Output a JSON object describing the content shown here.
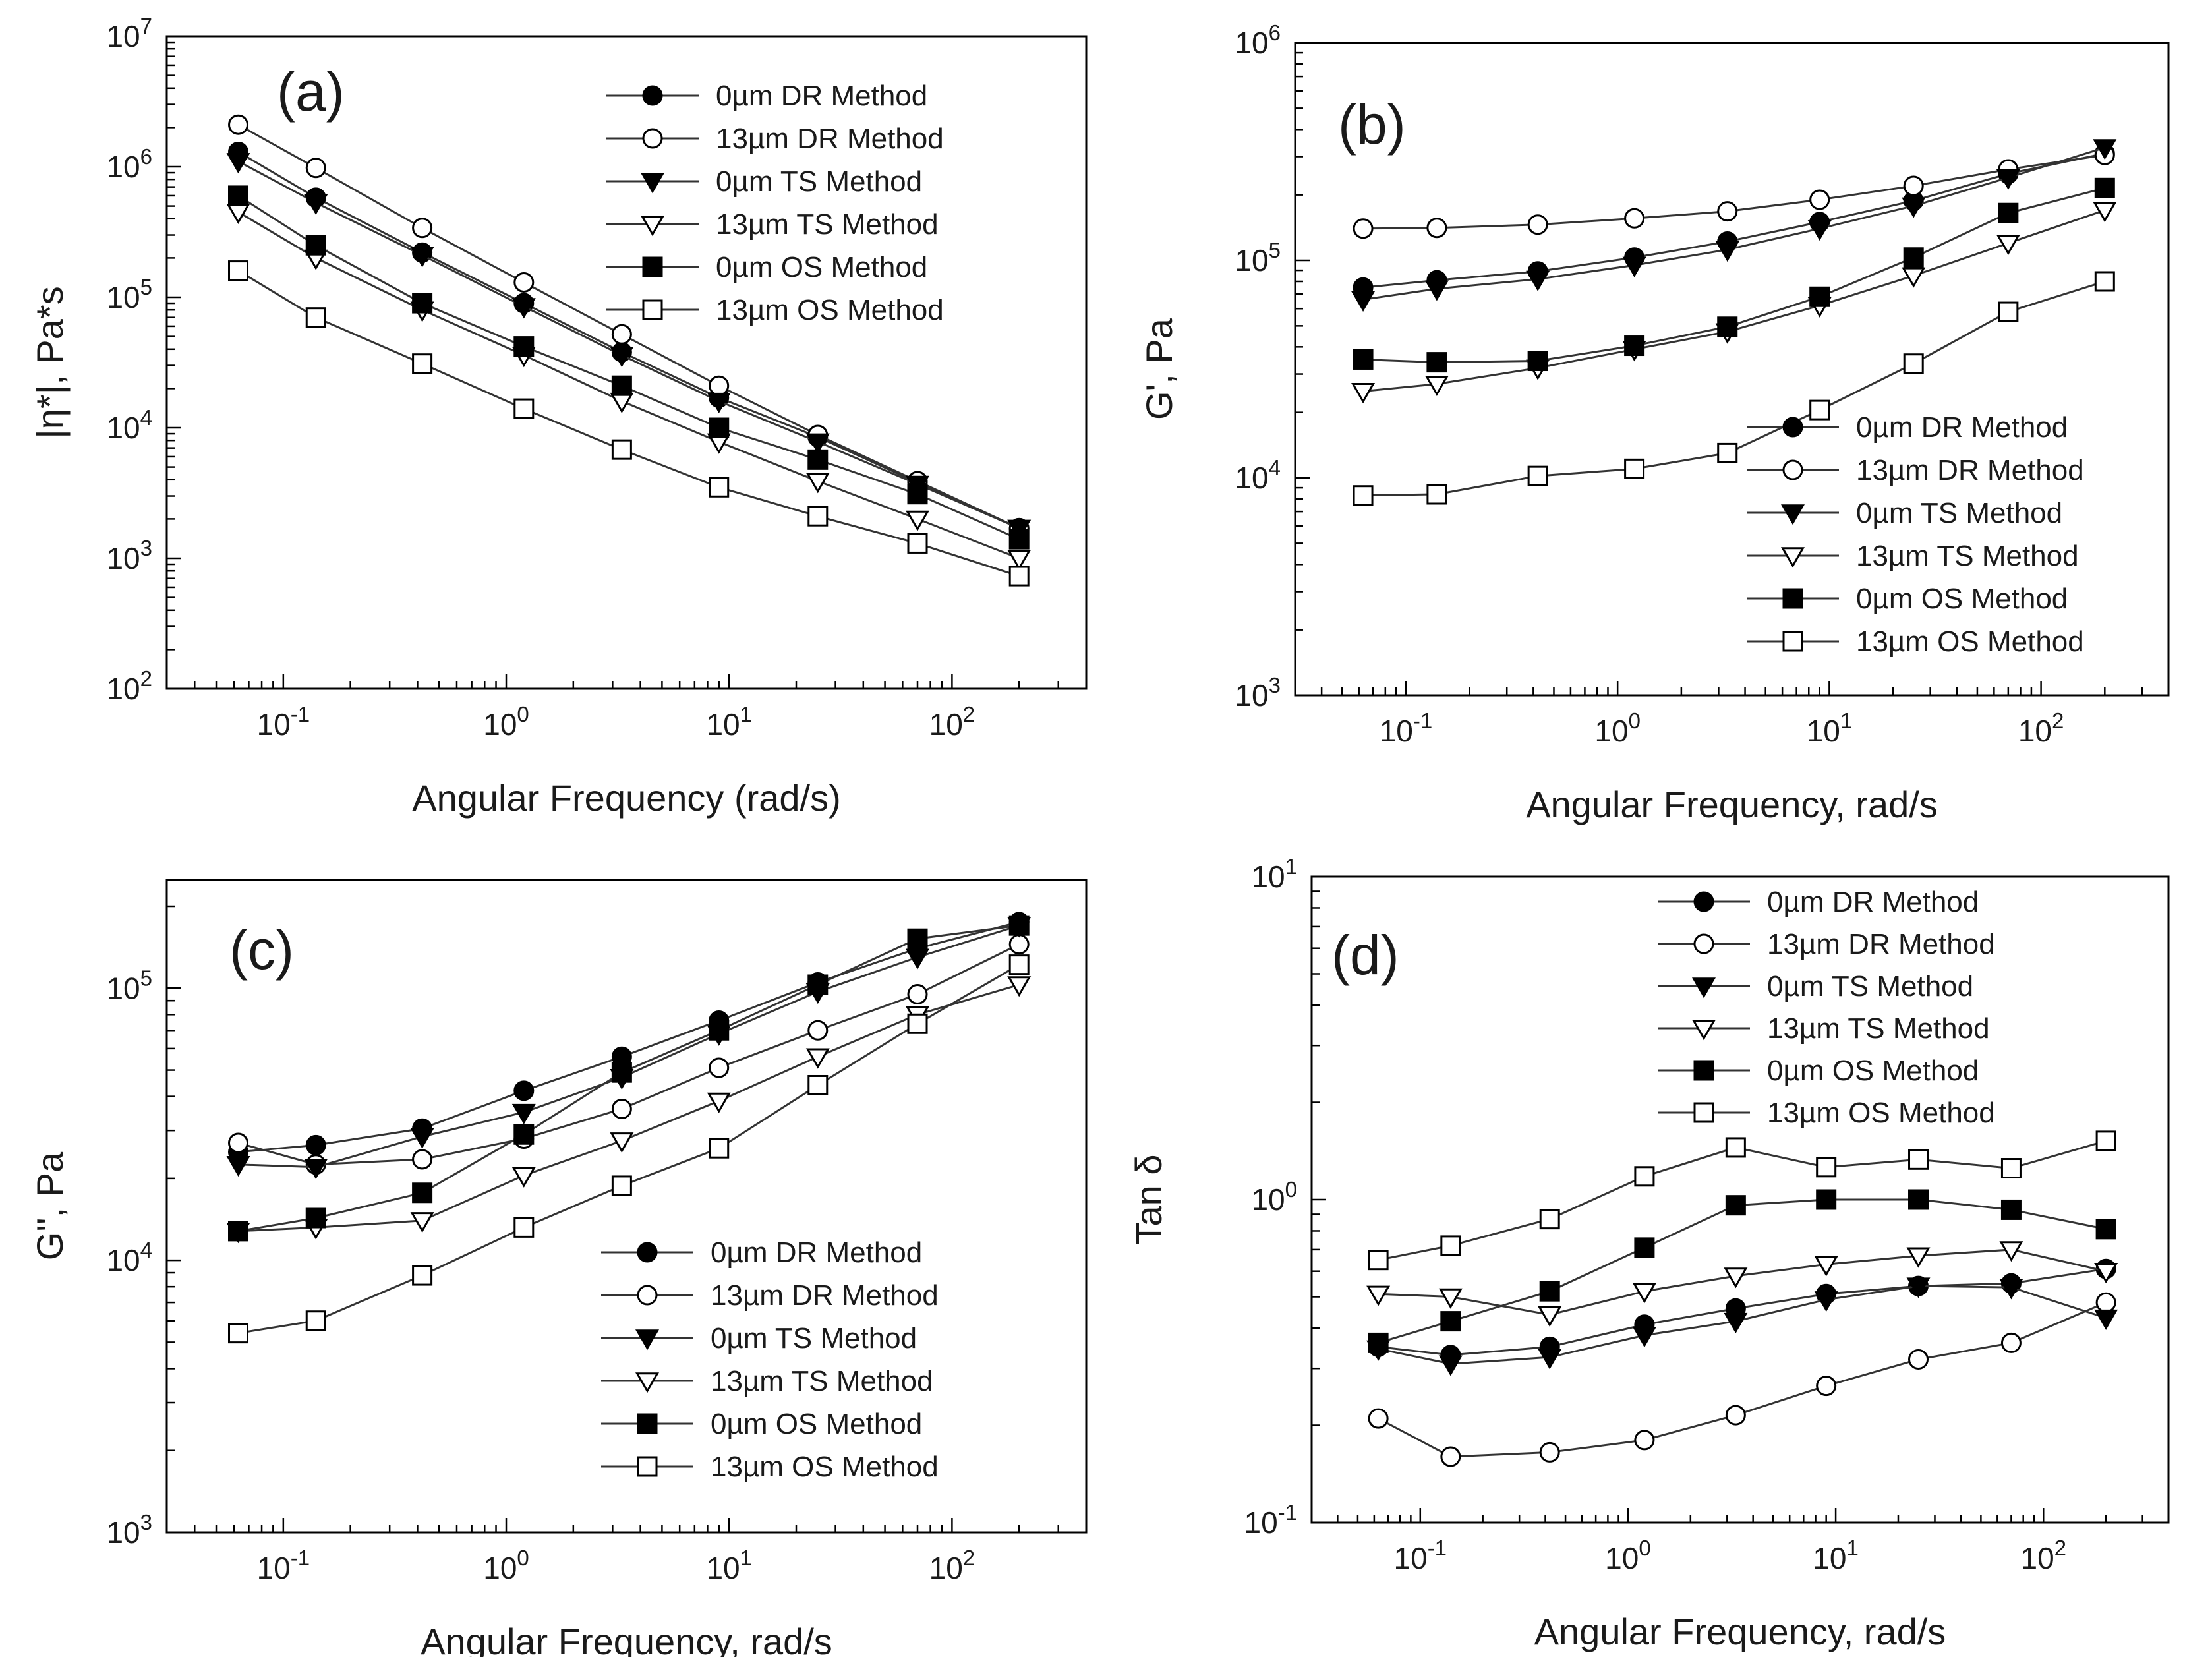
{
  "figure": {
    "legend_entries": [
      {
        "name": "0µm DR Method",
        "marker": "circle",
        "fill": "filled"
      },
      {
        "name": "13µm DR Method",
        "marker": "circle",
        "fill": "open"
      },
      {
        "name": "0µm TS Method",
        "marker": "triangle-down",
        "fill": "filled"
      },
      {
        "name": "13µm TS Method",
        "marker": "triangle-down",
        "fill": "open"
      },
      {
        "name": "0µm OS Method",
        "marker": "square",
        "fill": "filled"
      },
      {
        "name": "13µm OS Method",
        "marker": "square",
        "fill": "open"
      }
    ],
    "colors": {
      "marker": "#000000",
      "line": "#333333",
      "background": "#ffffff"
    }
  },
  "chart_data": [
    {
      "panel": "(a)",
      "type": "line",
      "xlabel": "Angular Frequency (rad/s)",
      "ylabel": "|η*|, Pa*s",
      "xscale": "log",
      "yscale": "log",
      "xlim": [
        0.03,
        400
      ],
      "ylim": [
        100,
        10000000
      ],
      "x_ticks": [
        "10-1",
        "100",
        "101",
        "102"
      ],
      "y_ticks": [
        "102",
        "103",
        "104",
        "105",
        "106",
        "107"
      ],
      "legend_position": "top-right",
      "x": [
        0.0628,
        0.14,
        0.42,
        1.2,
        3.3,
        9.0,
        25.0,
        70.0,
        200.0
      ],
      "series": [
        {
          "name": "0µm DR Method",
          "values": [
            1300000,
            580000,
            220000,
            90000,
            38000,
            17000,
            8500,
            3800,
            1700
          ]
        },
        {
          "name": "13µm DR Method",
          "values": [
            2100000,
            980000,
            340000,
            130000,
            52000,
            21000,
            8800,
            3900,
            1700
          ]
        },
        {
          "name": "0µm TS Method",
          "values": [
            1100000,
            530000,
            210000,
            85000,
            36000,
            16000,
            7800,
            3700,
            1700
          ]
        },
        {
          "name": "13µm TS Method",
          "values": [
            450000,
            200000,
            80000,
            36000,
            16000,
            7800,
            3900,
            2000,
            1000
          ]
        },
        {
          "name": "0µm OS Method",
          "values": [
            600000,
            250000,
            90000,
            42000,
            21000,
            10000,
            5700,
            3100,
            1400
          ]
        },
        {
          "name": "13µm OS Method",
          "values": [
            160000,
            70000,
            31000,
            14000,
            6800,
            3500,
            2100,
            1300,
            730
          ]
        }
      ]
    },
    {
      "panel": "(b)",
      "type": "line",
      "xlabel": "Angular Frequency, rad/s",
      "ylabel": "G', Pa",
      "xscale": "log",
      "yscale": "log",
      "xlim": [
        0.03,
        400
      ],
      "ylim": [
        1000,
        1000000
      ],
      "x_ticks": [
        "10-1",
        "100",
        "101",
        "102"
      ],
      "y_ticks": [
        "103",
        "104",
        "105",
        "106"
      ],
      "legend_position": "bottom-right",
      "x": [
        0.0628,
        0.14,
        0.42,
        1.2,
        3.3,
        9.0,
        25.0,
        70.0,
        200.0
      ],
      "series": [
        {
          "name": "0µm DR Method",
          "values": [
            75000,
            81000,
            89000,
            103000,
            122000,
            150000,
            188000,
            250000,
            310000
          ]
        },
        {
          "name": "13µm DR Method",
          "values": [
            140000,
            141000,
            146000,
            156000,
            168000,
            190000,
            220000,
            262000,
            305000
          ]
        },
        {
          "name": "0µm TS Method",
          "values": [
            66000,
            74000,
            82000,
            95000,
            112000,
            140000,
            178000,
            240000,
            330000
          ]
        },
        {
          "name": "13µm TS Method",
          "values": [
            25000,
            27000,
            32000,
            39000,
            47000,
            62000,
            85000,
            120000,
            170000
          ]
        },
        {
          "name": "0µm OS Method",
          "values": [
            35000,
            34000,
            34500,
            40500,
            49500,
            68000,
            103000,
            165000,
            215000
          ]
        },
        {
          "name": "13µm OS Method",
          "values": [
            8300,
            8400,
            10200,
            11000,
            13000,
            20500,
            33500,
            58000,
            80000
          ]
        }
      ]
    },
    {
      "panel": "(c)",
      "type": "line",
      "xlabel": "Angular Frequency, rad/s",
      "ylabel": "G'', Pa",
      "xscale": "log",
      "yscale": "log",
      "xlim": [
        0.03,
        400
      ],
      "ylim": [
        1000,
        250000
      ],
      "x_ticks": [
        "10-1",
        "100",
        "101",
        "102"
      ],
      "y_ticks": [
        "103",
        "104",
        "105"
      ],
      "legend_position": "bottom-right",
      "x": [
        0.0628,
        0.14,
        0.42,
        1.2,
        3.3,
        9.0,
        25.0,
        70.0,
        200.0
      ],
      "series": [
        {
          "name": "0µm DR Method",
          "values": [
            25000,
            26500,
            30500,
            42000,
            56000,
            76000,
            105000,
            140000,
            175000
          ]
        },
        {
          "name": "13µm DR Method",
          "values": [
            27000,
            22500,
            23500,
            28000,
            36000,
            51000,
            70000,
            95000,
            145000
          ]
        },
        {
          "name": "0µm TS Method",
          "values": [
            22500,
            22000,
            28500,
            35000,
            47000,
            68000,
            97000,
            130000,
            170000
          ]
        },
        {
          "name": "13µm TS Method",
          "values": [
            12800,
            13200,
            14000,
            20500,
            27500,
            38500,
            56000,
            80000,
            103000
          ]
        },
        {
          "name": "0µm OS Method",
          "values": [
            12800,
            14300,
            17700,
            29000,
            49000,
            70000,
            103000,
            152000,
            170000
          ]
        },
        {
          "name": "13µm OS Method",
          "values": [
            5400,
            6000,
            8800,
            13200,
            18800,
            25800,
            44000,
            74000,
            122000
          ]
        }
      ]
    },
    {
      "panel": "(d)",
      "type": "line",
      "xlabel": "Angular Frequency, rad/s",
      "ylabel": "Tan δ",
      "xscale": "log",
      "yscale": "log",
      "xlim": [
        0.03,
        400
      ],
      "ylim": [
        0.1,
        10
      ],
      "x_ticks": [
        "10-1",
        "100",
        "101",
        "102"
      ],
      "y_ticks": [
        "10-1",
        "100",
        "101"
      ],
      "legend_position": "top-right",
      "x": [
        0.0628,
        0.14,
        0.42,
        1.2,
        3.3,
        9.0,
        25.0,
        70.0,
        200.0
      ],
      "series": [
        {
          "name": "0µm DR Method",
          "values": [
            0.35,
            0.33,
            0.35,
            0.41,
            0.46,
            0.51,
            0.54,
            0.55,
            0.61
          ]
        },
        {
          "name": "13µm DR Method",
          "values": [
            0.21,
            0.16,
            0.165,
            0.18,
            0.215,
            0.265,
            0.32,
            0.36,
            0.48
          ]
        },
        {
          "name": "0µm TS Method",
          "values": [
            0.345,
            0.31,
            0.325,
            0.38,
            0.42,
            0.49,
            0.54,
            0.535,
            0.43
          ]
        },
        {
          "name": "13µm TS Method",
          "values": [
            0.51,
            0.5,
            0.44,
            0.52,
            0.58,
            0.63,
            0.67,
            0.7,
            0.6
          ]
        },
        {
          "name": "0µm OS Method",
          "values": [
            0.36,
            0.42,
            0.52,
            0.71,
            0.96,
            1.0,
            1.0,
            0.93,
            0.81
          ]
        },
        {
          "name": "13µm OS Method",
          "values": [
            0.65,
            0.72,
            0.87,
            1.18,
            1.45,
            1.26,
            1.33,
            1.25,
            1.52
          ]
        }
      ]
    }
  ]
}
